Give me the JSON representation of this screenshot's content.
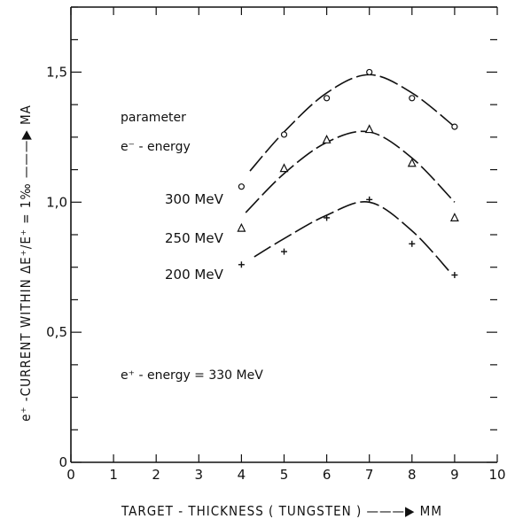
{
  "chart_data": {
    "type": "line",
    "xlabel": "TARGET - THICKNESS ( TUNGSTEN ) ———▶ MM",
    "ylabel": "e⁺ -CURRENT WITHIN ΔE⁺/E⁺ = 1‰ ———▶ MA",
    "xlim": [
      0,
      10
    ],
    "ylim": [
      0,
      1.75
    ],
    "x_ticks": [
      0,
      1,
      2,
      3,
      4,
      5,
      6,
      7,
      8,
      9,
      10
    ],
    "x_tick_labels": [
      "0",
      "1",
      "2",
      "3",
      "4",
      "5",
      "6",
      "7",
      "8",
      "9",
      "10"
    ],
    "y_ticks": [
      0,
      0.5,
      1.0,
      1.5
    ],
    "y_tick_labels": [
      "0",
      "0,5",
      "1,0",
      "1,5"
    ],
    "grid": false,
    "annotations": {
      "parameter_line1": "parameter",
      "parameter_line2": "e⁻ - energy",
      "positron_energy": "e⁺ - energy = 330 MeV"
    },
    "series": [
      {
        "name": "300 MeV",
        "marker": "circle",
        "x": [
          4,
          5,
          6,
          7,
          8,
          9
        ],
        "values": [
          1.06,
          1.26,
          1.4,
          1.5,
          1.4,
          1.29
        ]
      },
      {
        "name": "250 MeV",
        "marker": "triangle",
        "x": [
          4,
          5,
          6,
          7,
          8,
          9
        ],
        "values": [
          0.9,
          1.13,
          1.24,
          1.28,
          1.15,
          0.94
        ]
      },
      {
        "name": "200 MeV",
        "marker": "plus",
        "x": [
          4,
          5,
          6,
          7,
          8,
          9
        ],
        "values": [
          0.76,
          0.81,
          0.94,
          1.01,
          0.84,
          0.72
        ]
      }
    ]
  }
}
